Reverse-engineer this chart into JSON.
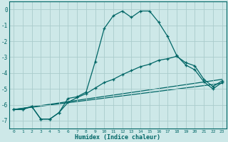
{
  "xlabel": "Humidex (Indice chaleur)",
  "background_color": "#cde8e8",
  "grid_color": "#aacccc",
  "line_color": "#006666",
  "xlim": [
    -0.5,
    23.5
  ],
  "ylim": [
    -7.5,
    0.5
  ],
  "yticks": [
    0,
    -1,
    -2,
    -3,
    -4,
    -5,
    -6,
    -7
  ],
  "xticks": [
    0,
    1,
    2,
    3,
    4,
    5,
    6,
    7,
    8,
    9,
    10,
    11,
    12,
    13,
    14,
    15,
    16,
    17,
    18,
    19,
    20,
    21,
    22,
    23
  ],
  "series1_x": [
    0,
    1,
    2,
    3,
    4,
    5,
    6,
    7,
    8,
    9,
    10,
    11,
    12,
    13,
    14,
    15,
    16,
    17,
    18,
    19,
    20,
    21,
    22,
    23
  ],
  "series1_y": [
    -6.3,
    -6.3,
    -6.1,
    -6.9,
    -6.9,
    -6.5,
    -5.6,
    -5.5,
    -5.2,
    -3.3,
    -1.2,
    -0.4,
    -0.1,
    -0.5,
    -0.1,
    -0.1,
    -0.8,
    -1.7,
    -2.9,
    -3.5,
    -3.8,
    -4.55,
    -5.0,
    -4.6
  ],
  "series2_x": [
    0,
    1,
    2,
    3,
    4,
    5,
    6,
    7,
    8,
    9,
    10,
    11,
    12,
    13,
    14,
    15,
    16,
    17,
    18,
    19,
    20,
    21,
    22,
    23
  ],
  "series2_y": [
    -6.3,
    -6.3,
    -6.1,
    -6.9,
    -6.9,
    -6.5,
    -5.85,
    -5.55,
    -5.3,
    -4.95,
    -4.6,
    -4.4,
    -4.1,
    -3.85,
    -3.6,
    -3.45,
    -3.2,
    -3.1,
    -2.95,
    -3.35,
    -3.55,
    -4.4,
    -4.85,
    -4.5
  ],
  "series3_x": [
    0,
    23
  ],
  "series3_y": [
    -6.3,
    -4.4
  ],
  "series4_x": [
    0,
    23
  ],
  "series4_y": [
    -6.3,
    -4.65
  ]
}
